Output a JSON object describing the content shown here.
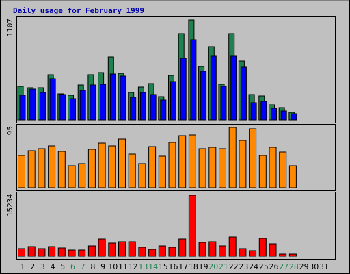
{
  "chart_data": {
    "type": "bar",
    "title": "Daily usage for February 1999",
    "categories": [
      "1",
      "2",
      "3",
      "4",
      "5",
      "6",
      "7",
      "8",
      "9",
      "10",
      "11",
      "12",
      "13",
      "14",
      "15",
      "16",
      "17",
      "18",
      "19",
      "20",
      "21",
      "22",
      "23",
      "24",
      "25",
      "26",
      "27",
      "28",
      "29",
      "30",
      "31"
    ],
    "weekend_days": [
      "6",
      "7",
      "13",
      "14",
      "20",
      "21",
      "27",
      "28"
    ],
    "panels": [
      {
        "name": "top",
        "ymax_label": "1107",
        "ymax": 1107,
        "series": [
          {
            "color": "#1e8250",
            "values": [
              368,
              358,
              359,
              497,
              291,
              270,
              390,
              502,
              520,
              695,
              515,
              303,
              363,
              400,
              256,
              496,
              957,
              1107,
              593,
              812,
              398,
              957,
              650,
              280,
              265,
              168,
              136,
              82,
              0,
              0,
              0
            ]
          },
          {
            "color": "#0000ff",
            "values": [
              276,
              343,
              305,
              452,
              280,
              235,
              327,
              390,
              391,
              510,
              485,
              253,
              303,
              280,
              217,
              426,
              680,
              887,
              535,
              703,
              371,
              703,
              581,
              190,
              205,
              128,
              95,
              66,
              0,
              0,
              0
            ]
          }
        ]
      },
      {
        "name": "middle",
        "ymax_label": "95",
        "ymax": 95,
        "series": [
          {
            "color": "#ff8800",
            "values": [
              51,
              58,
              62,
              66,
              57,
              35,
              38,
              60,
              70,
              66,
              77,
              53,
              38,
              65,
              50,
              71,
              82,
              83,
              62,
              64,
              61,
              95,
              74,
              93,
              51,
              64,
              56,
              35,
              0,
              0,
              0
            ]
          }
        ]
      },
      {
        "name": "bottom",
        "ymax_label": "15234",
        "ymax": 15234,
        "series": [
          {
            "color": "#ff0000",
            "values": [
              1930,
              2440,
              1900,
              2450,
              2130,
              1480,
              1530,
              2510,
              4280,
              3210,
              3540,
              3580,
              2150,
              1770,
              2530,
              2230,
              4360,
              15234,
              3360,
              3640,
              2560,
              4820,
              1950,
              1310,
              4510,
              3000,
              460,
              490,
              0,
              0,
              0
            ]
          }
        ]
      }
    ]
  },
  "colors": {
    "weekday_label": "#000000",
    "weekend_label": "#1e8250",
    "title": "#0000aa"
  }
}
